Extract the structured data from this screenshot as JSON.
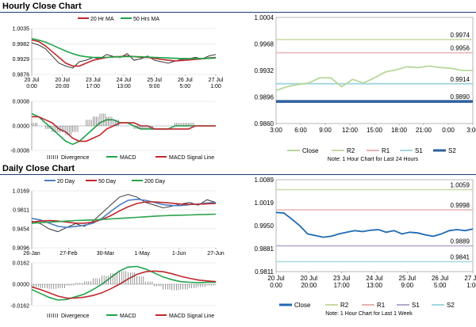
{
  "sections": {
    "hourly_title": "Hourly Close Chart",
    "daily_title": "Daily Close Chart"
  },
  "colors": {
    "ma_short": "#c0282d",
    "ma_long": "#1fa34a",
    "ma_200": "#2aa34a",
    "ma_20": "#4a7fc4",
    "price": "#222222",
    "macd": "#1fa34a",
    "signal": "#c0282d",
    "divergence": "#555555",
    "close_hourly": "#b8d89c",
    "close_daily": "#1f6ab3",
    "r2": "#c7d9a5",
    "r1": "#e9b3b3",
    "s1": "#b7a7cf",
    "s2_hourly": "#2f5f9f",
    "s2_daily": "#a6d7e0",
    "s1_hourly": "#a6d7e0"
  },
  "chart_data": [
    {
      "id": "hourly-price",
      "type": "line",
      "legend": [
        "20 Hr MA",
        "50 Hrs MA"
      ],
      "y_ticks": [
        "1.0035",
        "0.9982",
        "0.9929",
        "0.9876"
      ],
      "x_ticks": [
        "20 Jul\n0:00",
        "20 Jul\n20:00",
        "23 Jul\n17:00",
        "24 Jul\n13:00",
        "25 Jul\n9:00",
        "26 Jul\n5:00",
        "27 Jul\n1:00"
      ],
      "ylim": [
        0.9876,
        1.0035
      ],
      "series": [
        {
          "name": "Price",
          "values": [
            0.9985,
            0.9978,
            0.9965,
            0.994,
            0.9915,
            0.9905,
            0.9898,
            0.992,
            0.9925,
            0.9935,
            0.993,
            0.9945,
            0.9938,
            0.9935,
            0.9948,
            0.9925,
            0.993,
            0.994,
            0.9925,
            0.992,
            0.9915,
            0.9922,
            0.9928,
            0.993,
            0.9935,
            0.993,
            0.994,
            0.9945
          ]
        },
        {
          "name": "20 Hr MA",
          "values": [
            0.9995,
            0.999,
            0.9975,
            0.9955,
            0.9935,
            0.9915,
            0.9905,
            0.9905,
            0.9915,
            0.9925,
            0.993,
            0.9935,
            0.9937,
            0.9938,
            0.994,
            0.9938,
            0.9935,
            0.9935,
            0.9932,
            0.9928,
            0.9925,
            0.9923,
            0.9924,
            0.9926,
            0.9928,
            0.993,
            0.9933,
            0.9935
          ]
        },
        {
          "name": "50 Hrs MA",
          "values": [
            1.0,
            0.9995,
            0.9988,
            0.9978,
            0.9967,
            0.9957,
            0.9948,
            0.9941,
            0.9937,
            0.9935,
            0.9935,
            0.9935,
            0.9936,
            0.9937,
            0.9938,
            0.9938,
            0.9937,
            0.9936,
            0.9935,
            0.9934,
            0.9933,
            0.9932,
            0.9931,
            0.9931,
            0.9931,
            0.9931,
            0.9932,
            0.9933
          ]
        }
      ]
    },
    {
      "id": "hourly-macd",
      "type": "line",
      "legend": [
        "Divergence",
        "MACD",
        "MACD Signal Line"
      ],
      "y_ticks": [
        "0.0008",
        "0.0000",
        "-0.0008"
      ],
      "ylim": [
        -0.0008,
        0.0008
      ],
      "series": [
        {
          "name": "MACD",
          "values": [
            0.0004,
            0.0003,
            0.0001,
            -0.0001,
            -0.0003,
            -0.0005,
            -0.0006,
            -0.0005,
            -0.0003,
            -0.0001,
            0.0001,
            0.0002,
            0.0002,
            0.0001,
            0.0001,
            0.0,
            -0.0001,
            -0.0001,
            -0.0001,
            -0.0001,
            -0.0001,
            0.0,
            0.0,
            0.0,
            0.0,
            0.0,
            0.0,
            0.0
          ]
        },
        {
          "name": "MACD Signal Line",
          "values": [
            0.0003,
            0.0003,
            0.0002,
            0.0001,
            -0.0001,
            -0.0002,
            -0.0004,
            -0.0005,
            -0.0005,
            -0.0004,
            -0.0003,
            -0.0001,
            0.0,
            0.0001,
            0.0001,
            0.0001,
            0.0,
            0.0,
            -0.0001,
            -0.0001,
            -0.0001,
            -0.0001,
            -0.0001,
            -0.0001,
            0.0,
            0.0,
            0.0,
            0.0
          ]
        },
        {
          "name": "Divergence",
          "values": [
            0.0001,
            0.0,
            -0.0001,
            -0.0002,
            -0.0002,
            -0.0003,
            -0.0002,
            0.0,
            0.0002,
            0.0003,
            0.0004,
            0.0003,
            0.0002,
            0.0,
            0.0,
            -0.0001,
            -0.0001,
            -0.0001,
            0.0,
            0.0,
            0.0,
            0.0001,
            0.0001,
            0.0001,
            0.0,
            0.0,
            0.0,
            0.0
          ]
        }
      ]
    },
    {
      "id": "hourly-levels",
      "type": "line",
      "y_ticks": [
        "1.0004",
        "0.9968",
        "0.9932",
        "0.9896",
        "0.9860"
      ],
      "x_ticks": [
        "3:00",
        "6:00",
        "9:00",
        "12:00",
        "15:00",
        "18:00",
        "21:00",
        "0:00",
        "3:00"
      ],
      "ylim": [
        0.986,
        1.0004
      ],
      "levels": [
        {
          "name": "R2",
          "value": 0.9974,
          "label": "0.9974"
        },
        {
          "name": "R1",
          "value": 0.9956,
          "label": "0.9956"
        },
        {
          "name": "S1",
          "value": 0.9914,
          "label": "0.9914"
        },
        {
          "name": "S2",
          "value": 0.989,
          "label": "0.9890"
        }
      ],
      "close": [
        0.9905,
        0.991,
        0.9913,
        0.9915,
        0.9922,
        0.9922,
        0.991,
        0.992,
        0.9915,
        0.9922,
        0.993,
        0.9933,
        0.9937,
        0.9936,
        0.9938,
        0.9936,
        0.9935,
        0.9932,
        0.9932
      ],
      "legend": [
        "Close",
        "R2",
        "R1",
        "S1",
        "S2"
      ],
      "note": "Note: 1 Hour Chart for Last 24 Hours"
    },
    {
      "id": "daily-price",
      "type": "line",
      "legend": [
        "20 Day",
        "50 Day",
        "200 Day"
      ],
      "y_ticks": [
        "1.0169",
        "0.9811",
        "0.9454",
        "0.9096"
      ],
      "x_ticks": [
        "26-Jan",
        "27-Feb",
        "30-Mar",
        "1-May",
        "1-Jun",
        "27-Jun"
      ],
      "ylim": [
        0.9096,
        1.0169
      ],
      "series": [
        {
          "name": "Price",
          "values": [
            0.96,
            0.955,
            0.945,
            0.94,
            0.948,
            0.955,
            0.95,
            0.96,
            0.975,
            0.99,
            1.005,
            1.01,
            1.005,
            0.995,
            0.99,
            0.985,
            0.988,
            0.992,
            0.995,
            0.99,
            1.0,
            0.995
          ]
        },
        {
          "name": "20 Day",
          "values": [
            0.965,
            0.962,
            0.956,
            0.95,
            0.948,
            0.95,
            0.952,
            0.956,
            0.965,
            0.978,
            0.99,
            0.999,
            1.001,
            0.999,
            0.995,
            0.991,
            0.989,
            0.989,
            0.991,
            0.992,
            0.994,
            0.995
          ]
        },
        {
          "name": "50 Day",
          "values": [
            0.958,
            0.96,
            0.961,
            0.96,
            0.958,
            0.956,
            0.956,
            0.958,
            0.963,
            0.97,
            0.979,
            0.987,
            0.993,
            0.996,
            0.996,
            0.995,
            0.9935,
            0.992,
            0.9915,
            0.9915,
            0.9925,
            0.993
          ]
        },
        {
          "name": "200 Day",
          "values": [
            0.956,
            0.957,
            0.958,
            0.959,
            0.96,
            0.961,
            0.9615,
            0.962,
            0.963,
            0.964,
            0.965,
            0.966,
            0.967,
            0.968,
            0.969,
            0.97,
            0.9705,
            0.971,
            0.9715,
            0.972,
            0.9725,
            0.973
          ]
        }
      ]
    },
    {
      "id": "daily-macd",
      "type": "line",
      "legend": [
        "Divergence",
        "MACD",
        "MACD Signal Line"
      ],
      "y_ticks": [
        "0.0162",
        "0.0000",
        "-0.0162"
      ],
      "ylim": [
        -0.0162,
        0.0162
      ],
      "series": [
        {
          "name": "MACD",
          "values": [
            -0.004,
            -0.007,
            -0.01,
            -0.012,
            -0.0115,
            -0.0095,
            -0.0075,
            -0.004,
            0.0,
            0.005,
            0.01,
            0.013,
            0.0135,
            0.0115,
            0.0085,
            0.0055,
            0.0035,
            0.002,
            0.0015,
            0.0012,
            0.0015,
            0.0015
          ]
        },
        {
          "name": "MACD Signal Line",
          "values": [
            -0.002,
            -0.004,
            -0.0065,
            -0.009,
            -0.0105,
            -0.0105,
            -0.0098,
            -0.0085,
            -0.0065,
            -0.0035,
            0.0,
            0.004,
            0.0075,
            0.0095,
            0.01,
            0.0095,
            0.008,
            0.006,
            0.0045,
            0.0032,
            0.0025,
            0.002
          ]
        },
        {
          "name": "Divergence",
          "values": [
            -0.002,
            -0.003,
            -0.0035,
            -0.003,
            -0.001,
            0.001,
            0.0023,
            0.0045,
            0.0065,
            0.0085,
            0.01,
            0.009,
            0.006,
            0.002,
            -0.0015,
            -0.004,
            -0.0045,
            -0.004,
            -0.003,
            -0.002,
            -0.001,
            -0.0005
          ]
        }
      ]
    },
    {
      "id": "daily-levels",
      "type": "line",
      "y_ticks": [
        "1.0089",
        "1.0019",
        "0.9950",
        "0.9881",
        "0.9811"
      ],
      "x_ticks": [
        "20 Jul\n0:00",
        "20 Jul\n20:00",
        "23 Jul\n17:00",
        "24 Jul\n13:00",
        "25 Jul\n9:00",
        "26 Jul\n5:00",
        "27 Jul\n1:00"
      ],
      "ylim": [
        0.9811,
        1.0089
      ],
      "levels": [
        {
          "name": "R2",
          "value": 1.0059,
          "label": "1.0059"
        },
        {
          "name": "R1",
          "value": 0.9998,
          "label": "0.9998"
        },
        {
          "name": "S1",
          "value": 0.9889,
          "label": "0.9889"
        },
        {
          "name": "S2",
          "value": 0.9841,
          "label": "0.9841"
        }
      ],
      "close": [
        0.999,
        0.9988,
        0.997,
        0.995,
        0.9925,
        0.992,
        0.9915,
        0.9918,
        0.9925,
        0.993,
        0.9935,
        0.9932,
        0.9936,
        0.9938,
        0.993,
        0.9935,
        0.9925,
        0.993,
        0.9928,
        0.9922,
        0.9918,
        0.9925,
        0.9935,
        0.9938,
        0.9935,
        0.994
      ],
      "legend": [
        "Close",
        "R2",
        "R1",
        "S1",
        "S2"
      ],
      "note": "Note: 1 Hour Chart for Last 1 Week"
    }
  ]
}
